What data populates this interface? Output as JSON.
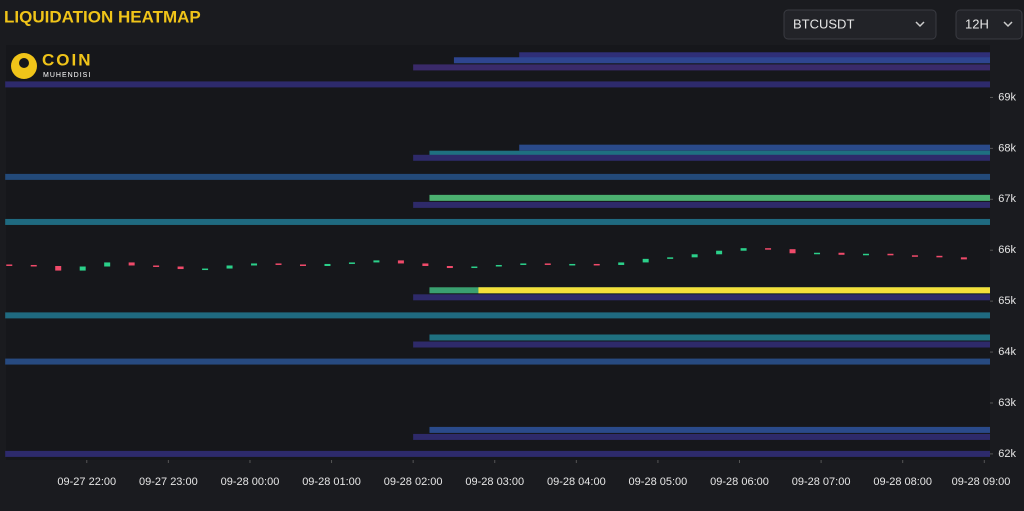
{
  "header": {
    "title": "LIQUIDATION HEATMAP",
    "symbol": "BTCUSDT",
    "interval": "12H",
    "logo_main": "COIN",
    "logo_sub": "MUHENDISI"
  },
  "chart_data": {
    "type": "heatmap",
    "xlim": [
      21.01,
      33.07
    ],
    "ylim": [
      61880,
      70030
    ],
    "xticks": [
      {
        "value": 22,
        "label": "09-27 22:00"
      },
      {
        "value": 23,
        "label": "09-27 23:00"
      },
      {
        "value": 24,
        "label": "09-28 00:00"
      },
      {
        "value": 25,
        "label": "09-28 01:00"
      },
      {
        "value": 26,
        "label": "09-28 02:00"
      },
      {
        "value": 27,
        "label": "09-28 03:00"
      },
      {
        "value": 28,
        "label": "09-28 04:00"
      },
      {
        "value": 29,
        "label": "09-28 05:00"
      },
      {
        "value": 30,
        "label": "09-28 06:00"
      },
      {
        "value": 31,
        "label": "09-28 07:00"
      },
      {
        "value": 32,
        "label": "09-28 08:00"
      },
      {
        "value": 33,
        "label": "09-28 09:00"
      }
    ],
    "yticks": [
      {
        "value": 62000,
        "label": "62k"
      },
      {
        "value": 63000,
        "label": "63k"
      },
      {
        "value": 64000,
        "label": "64k"
      },
      {
        "value": 65000,
        "label": "65k"
      },
      {
        "value": 66000,
        "label": "66k"
      },
      {
        "value": 67000,
        "label": "67k"
      },
      {
        "value": 68000,
        "label": "68k"
      },
      {
        "value": 69000,
        "label": "69k"
      }
    ],
    "bands": {
      "price": [
        69828,
        69730,
        69590,
        69256,
        68014,
        67895,
        67815,
        67440,
        67028,
        66890,
        66555,
        65213,
        65213,
        65075,
        64720,
        64286,
        64148,
        63813,
        62471,
        62333,
        62000
      ],
      "start": [
        27.3,
        26.5,
        26.0,
        21.0,
        27.3,
        26.2,
        26.0,
        21.0,
        26.2,
        26.0,
        21.0,
        26.2,
        26.8,
        26.0,
        21.0,
        26.2,
        26.0,
        21.0,
        26.2,
        26.0,
        21.0
      ],
      "color": [
        "#2f2f78",
        "#2e4590",
        "#3a2a6a",
        "#2d2a6c",
        "#2a4a8a",
        "#1f7080",
        "#2e2a6a",
        "#234a7a",
        "#4bb070",
        "#2e2a6a",
        "#1f6a80",
        "#3aa070",
        "#f5e03a",
        "#2e2a6a",
        "#1f6a80",
        "#1f7080",
        "#2e2a6a",
        "#274a80",
        "#2a4a8a",
        "#2e2a6a",
        "#2d2a6c"
      ]
    },
    "candles": {
      "x": [
        21.05,
        21.35,
        21.65,
        21.95,
        22.25,
        22.55,
        22.85,
        23.15,
        23.45,
        23.75,
        24.05,
        24.35,
        24.65,
        24.95,
        25.25,
        25.55,
        25.85,
        26.15,
        26.45,
        26.75,
        27.05,
        27.35,
        27.65,
        27.95,
        28.25,
        28.55,
        28.85,
        29.15,
        29.45,
        29.75,
        30.05,
        30.35,
        30.65,
        30.95,
        31.25,
        31.55,
        31.85,
        32.15,
        32.45,
        32.75
      ],
      "open": [
        65720,
        65710,
        65690,
        65600,
        65680,
        65760,
        65700,
        65680,
        65630,
        65640,
        65700,
        65740,
        65720,
        65690,
        65730,
        65760,
        65800,
        65740,
        65690,
        65650,
        65680,
        65710,
        65740,
        65720,
        65730,
        65710,
        65760,
        65830,
        65860,
        65920,
        65990,
        66040,
        66020,
        65940,
        65950,
        65910,
        65930,
        65900,
        65890,
        65860
      ],
      "close": [
        65710,
        65690,
        65600,
        65680,
        65760,
        65700,
        65680,
        65630,
        65640,
        65700,
        65740,
        65720,
        65690,
        65730,
        65760,
        65800,
        65740,
        65690,
        65650,
        65680,
        65710,
        65740,
        65720,
        65730,
        65710,
        65760,
        65830,
        65860,
        65920,
        65990,
        66040,
        66020,
        65940,
        65950,
        65910,
        65930,
        65900,
        65890,
        65860,
        65820
      ],
      "up_color": "#2bd08a",
      "down_color": "#f04a6a"
    }
  }
}
